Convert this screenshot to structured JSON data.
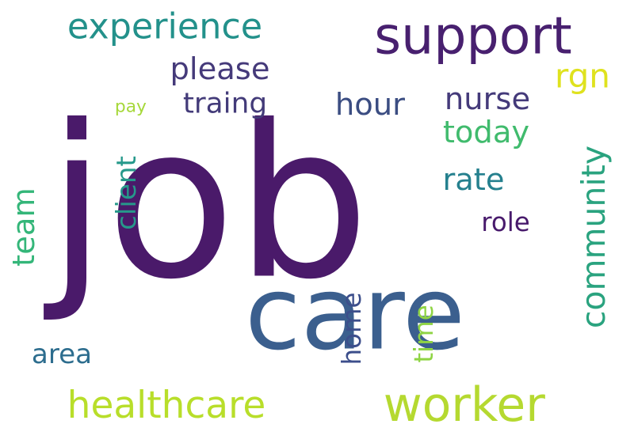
{
  "words": [
    {
      "key": "job",
      "text": "job",
      "color": "#4a1a6a"
    },
    {
      "key": "care",
      "text": "care",
      "color": "#3b5f8e"
    },
    {
      "key": "support",
      "text": "support",
      "color": "#48206f"
    },
    {
      "key": "worker",
      "text": "worker",
      "color": "#b5d930"
    },
    {
      "key": "healthcare",
      "text": "healthcare",
      "color": "#b8de2a"
    },
    {
      "key": "experience",
      "text": "experience",
      "color": "#23918b"
    },
    {
      "key": "please",
      "text": "please",
      "color": "#453a7a"
    },
    {
      "key": "traing",
      "text": "traing",
      "color": "#433b79"
    },
    {
      "key": "hour",
      "text": "hour",
      "color": "#3b4d82"
    },
    {
      "key": "nurse",
      "text": "nurse",
      "color": "#443a7a"
    },
    {
      "key": "rgn",
      "text": "rgn",
      "color": "#dfe21e"
    },
    {
      "key": "today",
      "text": "today",
      "color": "#40bb6d"
    },
    {
      "key": "rate",
      "text": "rate",
      "color": "#25808e"
    },
    {
      "key": "role",
      "text": "role",
      "color": "#481a6c"
    },
    {
      "key": "community",
      "text": "community",
      "color": "#2aa37f"
    },
    {
      "key": "pay",
      "text": "pay",
      "color": "#a6d83a"
    },
    {
      "key": "client",
      "text": "client",
      "color": "#26998b"
    },
    {
      "key": "team",
      "text": "team",
      "color": "#34b679"
    },
    {
      "key": "area",
      "text": "area",
      "color": "#2d6d8e"
    },
    {
      "key": "home",
      "text": "home",
      "color": "#3c4e8b"
    },
    {
      "key": "time",
      "text": "time",
      "color": "#8fd444"
    }
  ]
}
